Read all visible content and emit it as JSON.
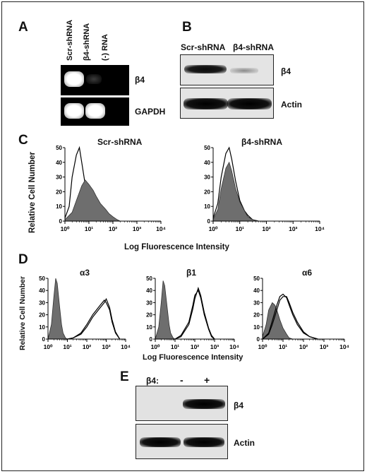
{
  "figure": {
    "panels": {
      "A": {
        "letter": "A",
        "lanes": [
          "Scr-shRNA",
          "β4-shRNA",
          "(-) RNA"
        ],
        "rows": [
          "β4",
          "GAPDH"
        ]
      },
      "B": {
        "letter": "B",
        "lanes": [
          "Scr-shRNA",
          "β4-shRNA"
        ],
        "rows": [
          "β4",
          "Actin"
        ]
      },
      "C": {
        "letter": "C",
        "ylabel": "Relative Cell Number",
        "xlabel": "Log Fluorescence Intensity",
        "plots": [
          {
            "title": "Scr-shRNA"
          },
          {
            "title": "β4-shRNA"
          }
        ]
      },
      "D": {
        "letter": "D",
        "ylabel": "Relative Cell Number",
        "xlabel": "Log Fluorescence Intensity",
        "plots": [
          {
            "title": "α3"
          },
          {
            "title": "β1"
          },
          {
            "title": "α6"
          }
        ]
      },
      "E": {
        "letter": "E",
        "condition_label": "β4:",
        "conditions": [
          "-",
          "+"
        ],
        "rows": [
          "β4",
          "Actin"
        ]
      }
    }
  },
  "chart_data": [
    {
      "type": "area",
      "title": "Scr-shRNA",
      "xlabel": "Log Fluorescence Intensity",
      "ylabel": "Relative Cell Number",
      "xscale": "log",
      "xlim": [
        1,
        10000
      ],
      "ylim": [
        0,
        50
      ],
      "x_ticks": [
        "10⁰",
        "10¹",
        "10²",
        "10³",
        "10⁴"
      ],
      "y_ticks": [
        "0",
        "10",
        "20",
        "30",
        "40",
        "50"
      ],
      "series": [
        {
          "style": "outline",
          "x": [
            1,
            1.5,
            2,
            3,
            4,
            5,
            7,
            10,
            15,
            20,
            30,
            50
          ],
          "y": [
            2,
            10,
            30,
            45,
            50,
            40,
            25,
            15,
            7,
            4,
            2,
            0
          ]
        },
        {
          "style": "filled",
          "x": [
            1,
            2,
            3,
            5,
            7,
            10,
            15,
            20,
            30,
            50,
            70,
            100,
            150,
            200
          ],
          "y": [
            1,
            6,
            14,
            24,
            28,
            25,
            21,
            17,
            12,
            8,
            5,
            3,
            1,
            0
          ]
        }
      ]
    },
    {
      "type": "area",
      "title": "β4-shRNA",
      "xlabel": "Log Fluorescence Intensity",
      "ylabel": "Relative Cell Number",
      "xscale": "log",
      "xlim": [
        1,
        10000
      ],
      "ylim": [
        0,
        50
      ],
      "x_ticks": [
        "10⁰",
        "10¹",
        "10²",
        "10³",
        "10⁴"
      ],
      "y_ticks": [
        "0",
        "10",
        "20",
        "30",
        "40",
        "50"
      ],
      "series": [
        {
          "style": "outline",
          "x": [
            1,
            1.5,
            2,
            3,
            4,
            5,
            7,
            10,
            15,
            20,
            30,
            50
          ],
          "y": [
            2,
            12,
            30,
            46,
            50,
            42,
            27,
            14,
            7,
            4,
            1,
            0
          ]
        },
        {
          "style": "filled",
          "x": [
            1,
            1.5,
            2,
            3,
            4,
            5,
            7,
            10,
            15,
            20,
            30,
            50
          ],
          "y": [
            1,
            8,
            22,
            36,
            40,
            34,
            22,
            13,
            7,
            3,
            1,
            0
          ]
        }
      ]
    },
    {
      "type": "area",
      "title": "α3",
      "xlabel": "Log Fluorescence Intensity",
      "ylabel": "Relative Cell Number",
      "xscale": "log",
      "xlim": [
        1,
        10000
      ],
      "ylim": [
        0,
        50
      ],
      "x_ticks": [
        "10⁰",
        "10¹",
        "10²",
        "10³",
        "10⁴"
      ],
      "y_ticks": [
        "0",
        "10",
        "20",
        "30",
        "40",
        "50"
      ],
      "series": [
        {
          "style": "filled",
          "x": [
            1,
            1.5,
            2,
            2.5,
            3,
            4,
            5,
            6,
            8,
            10
          ],
          "y": [
            0,
            12,
            35,
            50,
            46,
            26,
            12,
            5,
            1,
            0
          ]
        },
        {
          "style": "outline",
          "x": [
            10,
            20,
            50,
            100,
            200,
            500,
            800,
            1000,
            1500,
            2000,
            3000,
            5000
          ],
          "y": [
            0,
            1,
            5,
            12,
            20,
            28,
            32,
            30,
            24,
            14,
            5,
            0
          ]
        },
        {
          "style": "outline",
          "x": [
            10,
            20,
            50,
            100,
            200,
            500,
            800,
            1000,
            1500,
            2000,
            3000,
            5000
          ],
          "y": [
            0,
            1,
            4,
            10,
            18,
            26,
            30,
            33,
            26,
            16,
            6,
            0
          ]
        }
      ]
    },
    {
      "type": "area",
      "title": "β1",
      "xlabel": "Log Fluorescence Intensity",
      "ylabel": "Relative Cell Number",
      "xscale": "log",
      "xlim": [
        1,
        10000
      ],
      "ylim": [
        0,
        50
      ],
      "x_ticks": [
        "10⁰",
        "10¹",
        "10²",
        "10³",
        "10⁴"
      ],
      "y_ticks": [
        "0",
        "10",
        "20",
        "30",
        "40",
        "50"
      ],
      "series": [
        {
          "style": "filled",
          "x": [
            1,
            1.5,
            2,
            2.5,
            3,
            4,
            5,
            6,
            8,
            10
          ],
          "y": [
            0,
            10,
            30,
            48,
            44,
            26,
            12,
            5,
            1,
            0
          ]
        },
        {
          "style": "outline",
          "x": [
            10,
            20,
            50,
            80,
            100,
            150,
            200,
            300,
            500,
            700,
            1000
          ],
          "y": [
            0,
            3,
            14,
            28,
            36,
            40,
            34,
            20,
            8,
            2,
            0
          ]
        },
        {
          "style": "outline",
          "x": [
            10,
            20,
            50,
            80,
            100,
            150,
            200,
            300,
            500,
            700,
            1000
          ],
          "y": [
            0,
            2,
            12,
            25,
            33,
            42,
            36,
            22,
            9,
            3,
            0
          ]
        }
      ]
    },
    {
      "type": "area",
      "title": "α6",
      "xlabel": "Log Fluorescence Intensity",
      "ylabel": "Relative Cell Number",
      "xscale": "log",
      "xlim": [
        1,
        10000
      ],
      "ylim": [
        0,
        50
      ],
      "x_ticks": [
        "10⁰",
        "10¹",
        "10²",
        "10³",
        "10⁴"
      ],
      "y_ticks": [
        "0",
        "10",
        "20",
        "30",
        "40",
        "50"
      ],
      "series": [
        {
          "style": "filled",
          "x": [
            1,
            1.5,
            2,
            3,
            4,
            5,
            7,
            10,
            15,
            20,
            30
          ],
          "y": [
            2,
            12,
            24,
            30,
            28,
            24,
            16,
            9,
            4,
            1,
            0
          ]
        },
        {
          "style": "outline",
          "x": [
            1,
            2,
            3,
            5,
            7,
            10,
            15,
            20,
            30,
            50,
            100,
            200,
            500
          ],
          "y": [
            0,
            5,
            15,
            28,
            35,
            37,
            34,
            28,
            20,
            12,
            5,
            2,
            0
          ]
        },
        {
          "style": "outline",
          "x": [
            1,
            2,
            3,
            5,
            7,
            10,
            15,
            20,
            30,
            50,
            100,
            200,
            500
          ],
          "y": [
            0,
            4,
            12,
            24,
            32,
            35,
            35,
            30,
            22,
            14,
            6,
            2,
            0
          ]
        }
      ]
    }
  ]
}
